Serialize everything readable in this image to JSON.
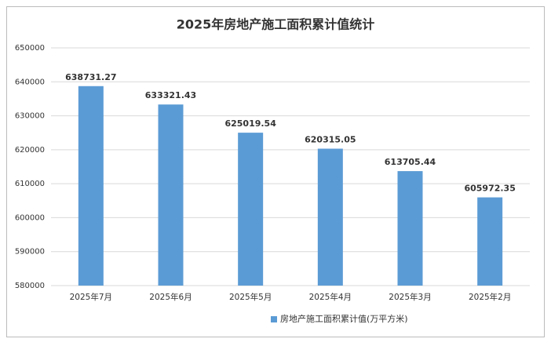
{
  "chart_data": {
    "type": "bar",
    "title": "2025年房地产施工面积累计值统计",
    "categories": [
      "2025年7月",
      "2025年6月",
      "2025年5月",
      "2025年4月",
      "2025年3月",
      "2025年2月"
    ],
    "series": [
      {
        "name": "房地产施工面积累计值(万平方米)",
        "color": "#5b9bd5",
        "values": [
          638731.27,
          633321.43,
          625019.54,
          620315.05,
          613705.44,
          605972.35
        ]
      }
    ],
    "ylim": [
      580000,
      650000
    ],
    "yticks": [
      580000,
      590000,
      600000,
      610000,
      620000,
      630000,
      640000,
      650000
    ],
    "grid": true,
    "legend": "bottom"
  }
}
